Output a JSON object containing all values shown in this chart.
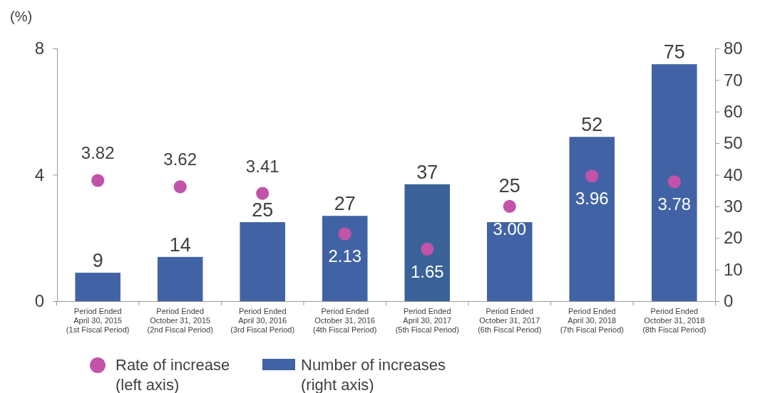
{
  "chart_data": {
    "type": "bar",
    "ylabel": "(%)",
    "categories": [
      "Period Ended\nApril 30, 2015\n(1st Fiscal Period)",
      "Period Ended\nOctober 31, 2015\n(2nd Fiscal Period)",
      "Period Ended\nApril 30, 2016\n(3rd Fiscal Period)",
      "Period Ended\nOctober 31, 2016\n(4th Fiscal Period)",
      "Period Ended\nApril 30, 2017\n(5th Fiscal Period)",
      "Period Ended\nOctober 31, 2017\n(6th Fiscal Period)",
      "Period Ended\nApril 30, 2018\n(7th Fiscal Period)",
      "Period Ended\nOctober 31, 2018\n(8th Fiscal Period)"
    ],
    "series": [
      {
        "name": "Number of increases\n(right axis)",
        "axis": "y2",
        "color": "#4163a5",
        "colors": [
          "#4163a5",
          "#4163a5",
          "#4163a5",
          "#4163a5",
          "#3a6298",
          "#4163a5",
          "#4163a5",
          "#4163a5"
        ],
        "values": [
          9,
          14,
          25,
          27,
          37,
          25,
          52,
          75
        ]
      },
      {
        "name": "Rate of increase\n(left axis)",
        "type": "scatter",
        "color": "#c153a8",
        "values": [
          3.82,
          3.62,
          3.41,
          2.13,
          1.65,
          3.0,
          3.96,
          3.78
        ],
        "value_labels": [
          "3.82",
          "3.62",
          "3.41",
          "2.13",
          "1.65",
          "3.00",
          "3.96",
          "3.78"
        ]
      }
    ],
    "ylim": [
      0,
      8
    ],
    "yticks": [
      0,
      4,
      8
    ],
    "y2lim": [
      0,
      80
    ],
    "y2ticks": [
      0,
      10,
      20,
      30,
      40,
      50,
      60,
      70,
      80
    ],
    "data_labels": true,
    "marker": "circle",
    "legend": "bottom left",
    "grid": false
  }
}
